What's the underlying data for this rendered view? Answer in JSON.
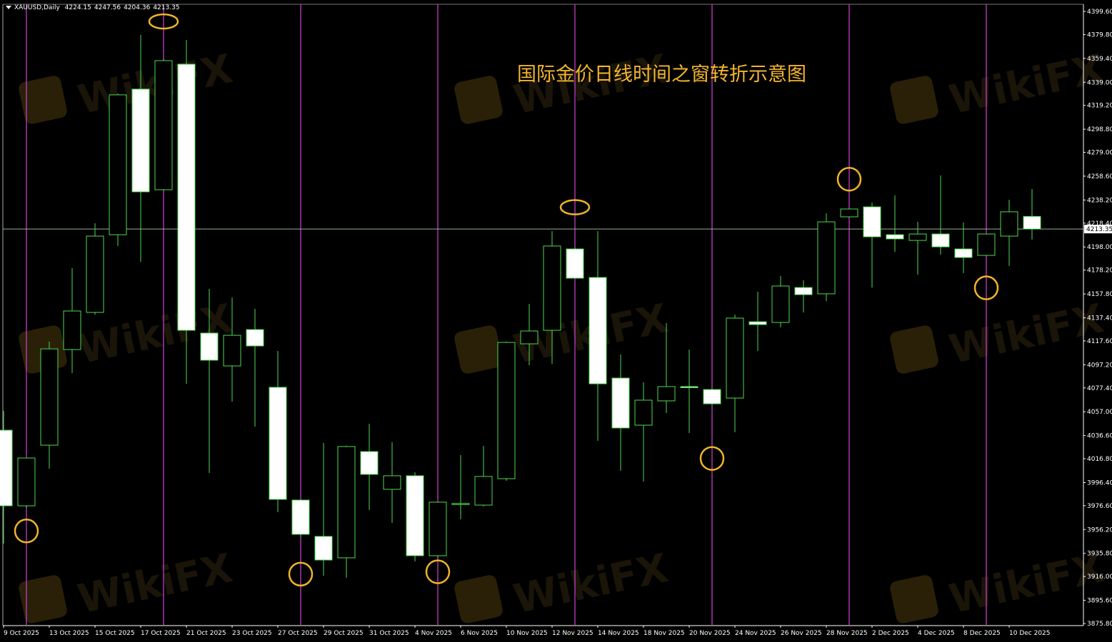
{
  "header": {
    "symbol": "XAUUSD,Daily",
    "open": "4224.15",
    "high": "4247.56",
    "low": "4204.36",
    "close": "4213.35"
  },
  "watermark": "WikiFX",
  "colors": {
    "background": "#000000",
    "bull_outline": "#4fd84f",
    "bear_fill": "#ffffff",
    "wick": "#4fd84f",
    "time_window_line": "#c23ec8",
    "marker": "#f0b429",
    "bid_line": "#a8c8a8",
    "title": "#f2b52e"
  },
  "chart_data": {
    "type": "candlestick",
    "title": "国际金价日线时间之窗转折示意图",
    "symbol": "XAUUSD",
    "timeframe": "Daily",
    "ylim": [
      3875.8,
      4399.6
    ],
    "grid": false,
    "y_ticks": [
      "4399.60",
      "4379.80",
      "4359.40",
      "4339.00",
      "4319.20",
      "4298.80",
      "4279.00",
      "4258.60",
      "4238.20",
      "4218.40",
      "4198.00",
      "4178.20",
      "4157.80",
      "4137.40",
      "4117.60",
      "4097.20",
      "4077.40",
      "4057.00",
      "4036.60",
      "4016.80",
      "3996.40",
      "3976.60",
      "3956.20",
      "3935.80",
      "3916.00",
      "3895.60",
      "3875.80"
    ],
    "x_tick_labels": [
      "9 Oct 2025",
      "13 Oct 2025",
      "15 Oct 2025",
      "17 Oct 2025",
      "21 Oct 2025",
      "23 Oct 2025",
      "27 Oct 2025",
      "29 Oct 2025",
      "31 Oct 2025",
      "4 Nov 2025",
      "6 Nov 2025",
      "10 Nov 2025",
      "12 Nov 2025",
      "14 Nov 2025",
      "18 Nov 2025",
      "20 Nov 2025",
      "24 Nov 2025",
      "26 Nov 2025",
      "28 Nov 2025",
      "2 Dec 2025",
      "4 Dec 2025",
      "8 Dec 2025",
      "10 Dec 2025"
    ],
    "current_price": "4213.35",
    "candles": [
      {
        "date": "9 Oct 2025",
        "o": 4041.2,
        "h": 4057.7,
        "l": 3944.2,
        "c": 3976.5
      },
      {
        "date": "10 Oct 2025",
        "o": 3976.5,
        "h": 4017.4,
        "l": 3974.7,
        "c": 4017.4
      },
      {
        "date": "13 Oct 2025",
        "o": 4028.4,
        "h": 4117.0,
        "l": 4008.3,
        "c": 4110.8
      },
      {
        "date": "14 Oct 2025",
        "o": 4110.2,
        "h": 4179.8,
        "l": 4090.1,
        "c": 4143.2
      },
      {
        "date": "15 Oct 2025",
        "o": 4142.0,
        "h": 4218.3,
        "l": 4140.1,
        "c": 4207.3
      },
      {
        "date": "16 Oct 2025",
        "o": 4208.5,
        "h": 4329.4,
        "l": 4198.8,
        "c": 4328.2
      },
      {
        "date": "17 Oct 2025",
        "o": 4333.1,
        "h": 4379.5,
        "l": 4185.3,
        "c": 4245.2
      },
      {
        "date": "20 Oct 2025",
        "o": 4247.0,
        "h": 4359.0,
        "l": 4246.0,
        "c": 4357.5
      },
      {
        "date": "21 Oct 2025",
        "o": 4354.4,
        "h": 4375.2,
        "l": 4080.9,
        "c": 4126.7
      },
      {
        "date": "22 Oct 2025",
        "o": 4124.3,
        "h": 4162.1,
        "l": 4004.6,
        "c": 4101.1
      },
      {
        "date": "23 Oct 2025",
        "o": 4096.2,
        "h": 4154.8,
        "l": 4065.7,
        "c": 4122.4
      },
      {
        "date": "24 Oct 2025",
        "o": 4127.3,
        "h": 4145.0,
        "l": 4044.3,
        "c": 4113.3
      },
      {
        "date": "27 Oct 2025",
        "o": 4077.9,
        "h": 4109.0,
        "l": 3971.0,
        "c": 3982.0
      },
      {
        "date": "28 Oct 2025",
        "o": 3981.4,
        "h": 3982.0,
        "l": 3950.0,
        "c": 3952.1
      },
      {
        "date": "29 Oct 2025",
        "o": 3950.3,
        "h": 4030.3,
        "l": 3916.7,
        "c": 3930.1
      },
      {
        "date": "30 Oct 2025",
        "o": 3932.0,
        "h": 4028.0,
        "l": 3914.9,
        "c": 4027.2
      },
      {
        "date": "31 Oct 2025",
        "o": 4022.9,
        "h": 4046.7,
        "l": 3972.9,
        "c": 4003.4
      },
      {
        "date": "3 Nov 2025",
        "o": 3990.6,
        "h": 4030.9,
        "l": 3961.9,
        "c": 4002.2
      },
      {
        "date": "4 Nov 2025",
        "o": 4002.2,
        "h": 4005.2,
        "l": 3928.9,
        "c": 3933.8
      },
      {
        "date": "5 Nov 2025",
        "o": 3933.8,
        "h": 3980.0,
        "l": 3932.0,
        "c": 3979.6
      },
      {
        "date": "6 Nov 2025",
        "o": 3978.4,
        "h": 4019.9,
        "l": 3964.9,
        "c": 3978.5
      },
      {
        "date": "7 Nov 2025",
        "o": 3977.1,
        "h": 4027.8,
        "l": 3975.9,
        "c": 4001.6
      },
      {
        "date": "10 Nov 2025",
        "o": 3999.7,
        "h": 4117.0,
        "l": 3997.9,
        "c": 4116.3
      },
      {
        "date": "11 Nov 2025",
        "o": 4115.1,
        "h": 4149.3,
        "l": 4096.8,
        "c": 4126.1
      },
      {
        "date": "12 Nov 2025",
        "o": 4126.7,
        "h": 4211.6,
        "l": 4098.0,
        "c": 4198.8
      },
      {
        "date": "13 Nov 2025",
        "o": 4196.3,
        "h": 4197.5,
        "l": 4171.0,
        "c": 4171.3
      },
      {
        "date": "14 Nov 2025",
        "o": 4171.9,
        "h": 4211.6,
        "l": 4032.1,
        "c": 4080.9
      },
      {
        "date": "17 Nov 2025",
        "o": 4085.8,
        "h": 4106.0,
        "l": 4006.5,
        "c": 4043.1
      },
      {
        "date": "18 Nov 2025",
        "o": 4045.5,
        "h": 4082.2,
        "l": 3997.3,
        "c": 4066.9
      },
      {
        "date": "19 Nov 2025",
        "o": 4066.3,
        "h": 4132.8,
        "l": 4055.9,
        "c": 4078.5
      },
      {
        "date": "20 Nov 2025",
        "o": 4078.5,
        "h": 4110.2,
        "l": 4038.8,
        "c": 4078.4
      },
      {
        "date": "21 Nov 2025",
        "o": 4076.0,
        "h": 4077.0,
        "l": 4063.0,
        "c": 4063.8
      },
      {
        "date": "24 Nov 2025",
        "o": 4068.7,
        "h": 4140.1,
        "l": 4039.4,
        "c": 4137.1
      },
      {
        "date": "25 Nov 2025",
        "o": 4134.0,
        "h": 4159.7,
        "l": 4109.0,
        "c": 4131.6
      },
      {
        "date": "26 Nov 2025",
        "o": 4133.4,
        "h": 4173.1,
        "l": 4129.2,
        "c": 4164.6
      },
      {
        "date": "27 Nov 2025",
        "o": 4163.3,
        "h": 4169.5,
        "l": 4142.0,
        "c": 4157.2
      },
      {
        "date": "28 Nov 2025",
        "o": 4157.9,
        "h": 4226.8,
        "l": 4151.7,
        "c": 4219.5
      },
      {
        "date": "1 Dec 2025",
        "o": 4223.8,
        "h": 4230.5,
        "l": 4223.0,
        "c": 4230.5
      },
      {
        "date": "2 Dec 2025",
        "o": 4232.3,
        "h": 4236.0,
        "l": 4163.3,
        "c": 4206.7
      },
      {
        "date": "3 Dec 2025",
        "o": 4208.5,
        "h": 4242.1,
        "l": 4193.9,
        "c": 4204.9
      },
      {
        "date": "4 Dec 2025",
        "o": 4203.6,
        "h": 4219.5,
        "l": 4174.3,
        "c": 4209.1
      },
      {
        "date": "5 Dec 2025",
        "o": 4209.1,
        "h": 4259.2,
        "l": 4191.4,
        "c": 4198.1
      },
      {
        "date": "8 Dec 2025",
        "o": 4196.3,
        "h": 4218.9,
        "l": 4175.6,
        "c": 4189.0
      },
      {
        "date": "9 Dec 2025",
        "o": 4190.8,
        "h": 4209.5,
        "l": 4190.0,
        "c": 4209.1
      },
      {
        "date": "10 Dec 2025",
        "o": 4207.3,
        "h": 4238.4,
        "l": 4181.7,
        "c": 4228.1
      },
      {
        "date": "11 Dec 2025",
        "o": 4224.15,
        "h": 4247.56,
        "l": 4204.36,
        "c": 4213.35
      }
    ],
    "time_window_dates": [
      "10 Oct 2025",
      "20 Oct 2025",
      "28 Oct 2025",
      "5 Nov 2025",
      "13 Nov 2025",
      "21 Nov 2025",
      "1 Dec 2025",
      "9 Dec 2025"
    ],
    "turning_point_markers": [
      {
        "date": "10 Oct 2025",
        "side": "below",
        "price": 3955
      },
      {
        "date": "20 Oct 2025",
        "side": "above",
        "price": 4391
      },
      {
        "date": "28 Oct 2025",
        "side": "below",
        "price": 3918
      },
      {
        "date": "5 Nov 2025",
        "side": "below",
        "price": 3920
      },
      {
        "date": "13 Nov 2025",
        "side": "above",
        "price": 4232
      },
      {
        "date": "21 Nov 2025",
        "side": "below",
        "price": 4017
      },
      {
        "date": "1 Dec 2025",
        "side": "above",
        "price": 4256
      },
      {
        "date": "9 Dec 2025",
        "side": "below",
        "price": 4163
      }
    ]
  }
}
